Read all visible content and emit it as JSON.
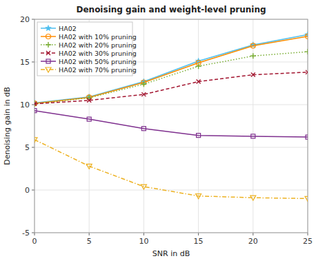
{
  "chart_data": {
    "type": "line",
    "title": "Denoising gain and weight-level pruning",
    "xlabel": "SNR in dB",
    "ylabel": "Denoising gain in dB",
    "x": [
      0,
      5,
      10,
      15,
      20,
      25
    ],
    "xlim": [
      0,
      25
    ],
    "ylim": [
      -5,
      20
    ],
    "xticks": [
      0,
      5,
      10,
      15,
      20,
      25
    ],
    "yticks": [
      -5,
      0,
      5,
      10,
      15,
      20
    ],
    "grid": true,
    "legend": "upper left",
    "series": [
      {
        "name": "HA02",
        "color": "#4DBEEE",
        "line_style": "solid",
        "marker": "star",
        "values": [
          10.2,
          10.9,
          12.7,
          15.1,
          17.0,
          18.2
        ]
      },
      {
        "name": "HA02 with 10% pruning",
        "color": "#FF8C00",
        "line_style": "solid",
        "marker": "circle",
        "values": [
          10.15,
          10.85,
          12.6,
          14.9,
          16.9,
          18.0
        ]
      },
      {
        "name": "HA02 with 20% pruning",
        "color": "#77AC30",
        "line_style": "dotted",
        "marker": "plus",
        "values": [
          10.1,
          10.8,
          12.4,
          14.5,
          15.7,
          16.2
        ]
      },
      {
        "name": "HA02 with 30% pruning",
        "color": "#A2142F",
        "line_style": "dashed",
        "marker": "x",
        "values": [
          10.1,
          10.5,
          11.2,
          12.7,
          13.5,
          13.8
        ]
      },
      {
        "name": "HA02 with 50% pruning",
        "color": "#7E2F8E",
        "line_style": "solid",
        "marker": "square",
        "values": [
          9.3,
          8.3,
          7.2,
          6.4,
          6.3,
          6.2
        ]
      },
      {
        "name": "HA02 with 70% pruning",
        "color": "#EDB120",
        "line_style": "dash-dot",
        "marker": "triangle-down",
        "values": [
          5.9,
          2.8,
          0.4,
          -0.7,
          -0.9,
          -1.0
        ]
      }
    ]
  }
}
